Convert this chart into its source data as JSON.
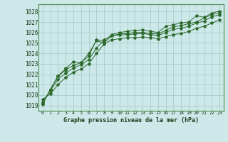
{
  "title": "Graphe pression niveau de la mer (hPa)",
  "bg_color": "#cce8e8",
  "grid_color": "#aacccc",
  "line_color": "#2d6a2d",
  "x_ticks": [
    0,
    1,
    2,
    3,
    4,
    5,
    6,
    7,
    8,
    9,
    10,
    11,
    12,
    13,
    14,
    15,
    16,
    17,
    18,
    19,
    20,
    21,
    22,
    23
  ],
  "y_ticks": [
    1019,
    1020,
    1021,
    1022,
    1023,
    1024,
    1025,
    1026,
    1027,
    1028
  ],
  "ylim": [
    1018.5,
    1028.7
  ],
  "xlim": [
    -0.5,
    23.5
  ],
  "series": [
    [
      1019.6,
      1020.1,
      1021.0,
      1021.7,
      1022.2,
      1022.5,
      1023.0,
      1024.0,
      1024.9,
      1025.3,
      1025.4,
      1025.5,
      1025.5,
      1025.55,
      1025.5,
      1025.4,
      1025.6,
      1025.8,
      1025.9,
      1026.1,
      1026.4,
      1026.6,
      1026.9,
      1027.2
    ],
    [
      1019.35,
      1020.4,
      1021.5,
      1022.1,
      1022.6,
      1022.9,
      1023.4,
      1024.5,
      1025.3,
      1025.7,
      1025.75,
      1025.8,
      1025.85,
      1025.9,
      1025.8,
      1025.7,
      1026.0,
      1026.3,
      1026.4,
      1026.6,
      1026.9,
      1027.1,
      1027.5,
      1027.7
    ],
    [
      1019.2,
      1020.5,
      1021.8,
      1022.4,
      1022.85,
      1023.1,
      1024.0,
      1025.2,
      1025.0,
      1025.7,
      1025.85,
      1025.9,
      1026.0,
      1026.0,
      1025.9,
      1025.85,
      1026.2,
      1026.55,
      1026.65,
      1026.85,
      1027.0,
      1027.4,
      1027.7,
      1027.9
    ],
    [
      1019.1,
      1020.55,
      1021.85,
      1022.55,
      1023.2,
      1023.1,
      1023.75,
      1025.3,
      1025.2,
      1025.8,
      1026.0,
      1026.1,
      1026.2,
      1026.25,
      1026.1,
      1026.0,
      1026.6,
      1026.75,
      1026.9,
      1027.0,
      1027.6,
      1027.45,
      1027.85,
      1028.05
    ]
  ]
}
